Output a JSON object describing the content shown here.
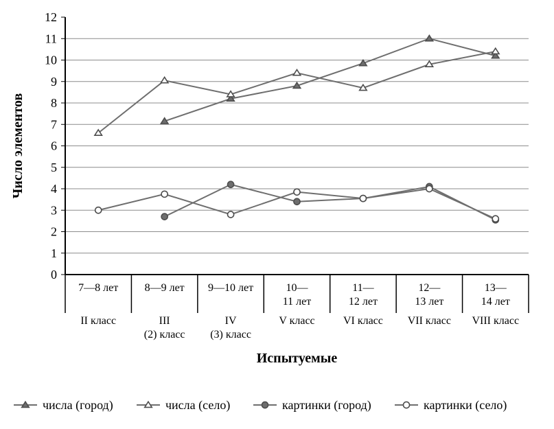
{
  "chart": {
    "type": "line",
    "background_color": "#ffffff",
    "axis_color": "#000000",
    "grid_color": "#8c8c8c",
    "line_color": "#6e6e6e",
    "marker_stroke": "#4d4d4d",
    "marker_fill_open": "#ffffff",
    "marker_fill_solid": "#6e6e6e",
    "line_width": 2,
    "marker_size": 7,
    "font_family": "Times New Roman",
    "tick_fontsize": 18,
    "axis_label_fontsize": 20,
    "cat_fontsize": 16,
    "legend_fontsize": 18,
    "ylabel": "Число элементов",
    "xlabel": "Испытуемые",
    "ylim": [
      0,
      12
    ],
    "ytick_step": 1,
    "categories": [
      {
        "line1": "7—8 лет",
        "line2": "II класс",
        "line3": ""
      },
      {
        "line1": "8—9 лет",
        "line2": "III",
        "line3": "(2) класс"
      },
      {
        "line1": "9—10 лет",
        "line2": "IV",
        "line3": "(3) класс"
      },
      {
        "line1": "10—",
        "line1b": "11 лет",
        "line2": "V класс",
        "line3": ""
      },
      {
        "line1": "11—",
        "line1b": "12 лет",
        "line2": "VI класс",
        "line3": ""
      },
      {
        "line1": "12—",
        "line1b": "13 лет",
        "line2": "VII класс",
        "line3": ""
      },
      {
        "line1": "13—",
        "line1b": "14 лет",
        "line2": "VIII класс",
        "line3": ""
      }
    ],
    "series": [
      {
        "name": "числа (город)",
        "marker": "triangle",
        "marker_fill": "solid",
        "values": [
          null,
          7.15,
          8.2,
          8.8,
          9.85,
          11.0,
          10.2
        ]
      },
      {
        "name": "числа (село)",
        "marker": "triangle",
        "marker_fill": "open",
        "values": [
          6.6,
          9.05,
          8.4,
          9.4,
          8.7,
          9.8,
          10.4
        ]
      },
      {
        "name": "картинки (город)",
        "marker": "circle",
        "marker_fill": "solid",
        "values": [
          null,
          2.7,
          4.2,
          3.4,
          3.55,
          4.1,
          2.55
        ]
      },
      {
        "name": "картинки (село)",
        "marker": "circle",
        "marker_fill": "open",
        "values": [
          3.0,
          3.75,
          2.8,
          3.85,
          3.55,
          4.0,
          2.6
        ]
      }
    ],
    "legend": {
      "position": "bottom",
      "items": [
        "числа (город)",
        "числа (село)",
        "картинки (город)",
        "картинки (село)"
      ]
    }
  }
}
